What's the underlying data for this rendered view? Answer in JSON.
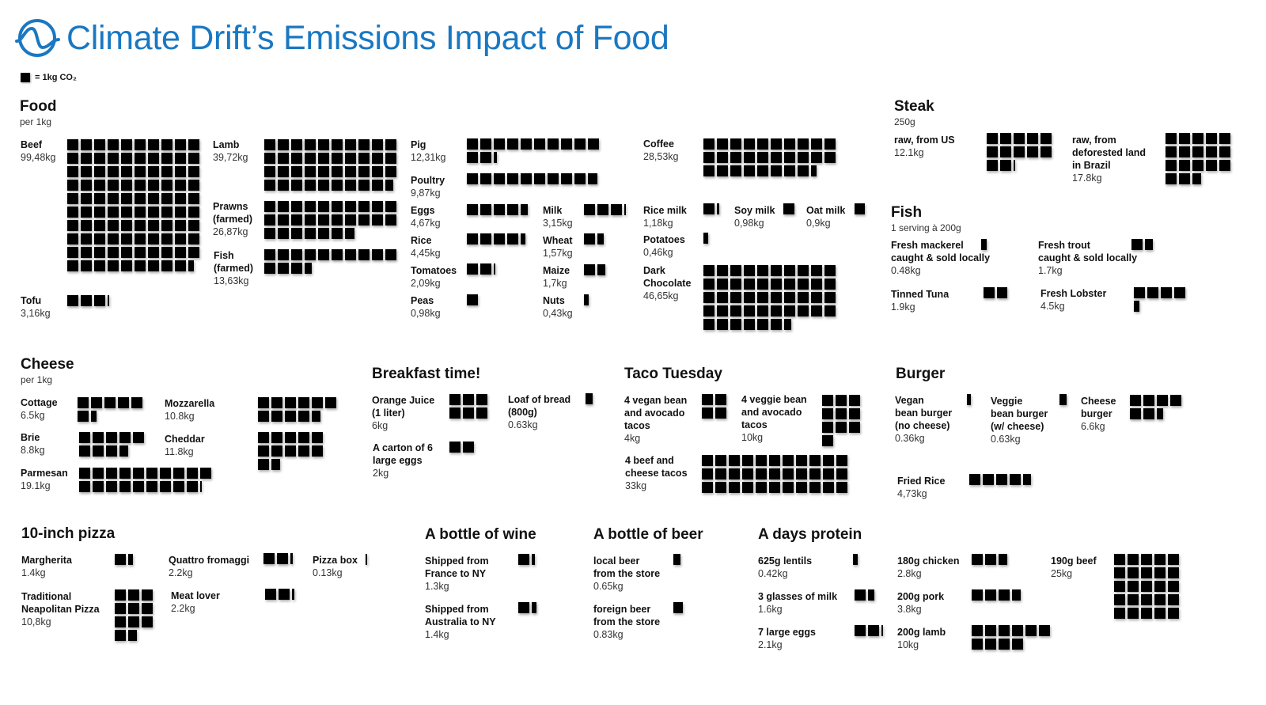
{
  "header": {
    "title": "Climate Drift’s Emissions Impact of Food",
    "logo_icon": "climate-drift-wave-logo",
    "brand_color": "#1a78c2"
  },
  "legend": {
    "unit_label": "= 1kg CO₂"
  },
  "sections": {
    "food": {
      "title": "Food",
      "subtitle": "per 1kg"
    },
    "steak": {
      "title": "Steak",
      "subtitle": "250g"
    },
    "fish": {
      "title": "Fish",
      "subtitle": "1 serving à 200g"
    },
    "cheese": {
      "title": "Cheese",
      "subtitle": "per 1kg"
    },
    "breakfast": {
      "title": "Breakfast time!"
    },
    "taco": {
      "title": "Taco Tuesday"
    },
    "burger": {
      "title": "Burger"
    },
    "pizza": {
      "title": "10-inch pizza"
    },
    "wine": {
      "title": "A bottle of wine"
    },
    "beer": {
      "title": "A bottle of beer"
    },
    "protein": {
      "title": "A days protein"
    }
  },
  "chart_data": {
    "type": "pictogram",
    "unit": "1 square = 1kg CO₂",
    "items": [
      {
        "group": "food",
        "label": "Beef",
        "value_text": "99,48kg",
        "value": 99.48
      },
      {
        "group": "food",
        "label": "Lamb",
        "value_text": "39,72kg",
        "value": 39.72
      },
      {
        "group": "food",
        "label": "Prawns\n(farmed)",
        "value_text": "26,87kg",
        "value": 26.87
      },
      {
        "group": "food",
        "label": "Fish\n(farmed)",
        "value_text": "13,63kg",
        "value": 13.63
      },
      {
        "group": "food",
        "label": "Tofu",
        "value_text": "3,16kg",
        "value": 3.16
      },
      {
        "group": "food",
        "label": "Pig",
        "value_text": "12,31kg",
        "value": 12.31
      },
      {
        "group": "food",
        "label": "Poultry",
        "value_text": "9,87kg",
        "value": 9.87
      },
      {
        "group": "food",
        "label": "Eggs",
        "value_text": "4,67kg",
        "value": 4.67
      },
      {
        "group": "food",
        "label": "Rice",
        "value_text": "4,45kg",
        "value": 4.45
      },
      {
        "group": "food",
        "label": "Tomatoes",
        "value_text": "2,09kg",
        "value": 2.09
      },
      {
        "group": "food",
        "label": "Peas",
        "value_text": "0,98kg",
        "value": 0.98
      },
      {
        "group": "food",
        "label": "Milk",
        "value_text": "3,15kg",
        "value": 3.15
      },
      {
        "group": "food",
        "label": "Wheat",
        "value_text": "1,57kg",
        "value": 1.57
      },
      {
        "group": "food",
        "label": "Maize",
        "value_text": "1,7kg",
        "value": 1.7
      },
      {
        "group": "food",
        "label": "Nuts",
        "value_text": "0,43kg",
        "value": 0.43
      },
      {
        "group": "food",
        "label": "Coffee",
        "value_text": "28,53kg",
        "value": 28.53
      },
      {
        "group": "food",
        "label": "Rice milk",
        "value_text": "1,18kg",
        "value": 1.18
      },
      {
        "group": "food",
        "label": "Soy milk",
        "value_text": "0,98kg",
        "value": 0.98
      },
      {
        "group": "food",
        "label": "Oat milk",
        "value_text": "0,9kg",
        "value": 0.9
      },
      {
        "group": "food",
        "label": "Potatoes",
        "value_text": "0,46kg",
        "value": 0.46
      },
      {
        "group": "food",
        "label": "Dark\nChocolate",
        "value_text": "46,65kg",
        "value": 46.65
      },
      {
        "group": "steak",
        "label": "raw, from US",
        "value_text": "12.1kg",
        "value": 12.1
      },
      {
        "group": "steak",
        "label": "raw, from\ndeforested land\nin Brazil",
        "value_text": "17.8kg",
        "value": 17.8
      },
      {
        "group": "fish",
        "label": "Fresh mackerel\ncaught & sold locally",
        "value_text": "0.48kg",
        "value": 0.48
      },
      {
        "group": "fish",
        "label": "Fresh trout\ncaught & sold locally",
        "value_text": "1.7kg",
        "value": 1.7
      },
      {
        "group": "fish",
        "label": "Tinned Tuna",
        "value_text": "1.9kg",
        "value": 1.9
      },
      {
        "group": "fish",
        "label": "Fresh Lobster",
        "value_text": "4.5kg",
        "value": 4.5
      },
      {
        "group": "cheese",
        "label": "Cottage",
        "value_text": "6.5kg",
        "value": 6.5
      },
      {
        "group": "cheese",
        "label": "Brie",
        "value_text": "8.8kg",
        "value": 8.8
      },
      {
        "group": "cheese",
        "label": "Parmesan",
        "value_text": "19.1kg",
        "value": 19.1
      },
      {
        "group": "cheese",
        "label": "Mozzarella",
        "value_text": "10.8kg",
        "value": 10.8
      },
      {
        "group": "cheese",
        "label": "Cheddar",
        "value_text": "11.8kg",
        "value": 11.8
      },
      {
        "group": "breakfast",
        "label": "Orange Juice\n(1 liter)",
        "value_text": "6kg",
        "value": 6
      },
      {
        "group": "breakfast",
        "label": "A carton of 6\nlarge eggs",
        "value_text": "2kg",
        "value": 2
      },
      {
        "group": "breakfast",
        "label": "Loaf of bread\n(800g)",
        "value_text": "0.63kg",
        "value": 0.63
      },
      {
        "group": "taco",
        "label": "4 vegan bean\nand avocado\ntacos",
        "value_text": "4kg",
        "value": 4
      },
      {
        "group": "taco",
        "label": "4 veggie bean\nand avocado\ntacos",
        "value_text": "10kg",
        "value": 10
      },
      {
        "group": "taco",
        "label": "4 beef and\ncheese tacos",
        "value_text": "33kg",
        "value": 33
      },
      {
        "group": "burger",
        "label": "Vegan\nbean burger\n(no cheese)",
        "value_text": "0.36kg",
        "value": 0.36
      },
      {
        "group": "burger",
        "label": "Veggie\nbean burger\n(w/ cheese)",
        "value_text": "0.63kg",
        "value": 0.63
      },
      {
        "group": "burger",
        "label": "Cheese\nburger",
        "value_text": "6.6kg",
        "value": 6.6
      },
      {
        "group": "burger",
        "label": "Fried Rice",
        "value_text": "4,73kg",
        "value": 4.73
      },
      {
        "group": "pizza",
        "label": "Margherita",
        "value_text": "1.4kg",
        "value": 1.4
      },
      {
        "group": "pizza",
        "label": "Traditional\nNeapolitan Pizza",
        "value_text": "10,8kg",
        "value": 10.8
      },
      {
        "group": "pizza",
        "label": "Quattro fromaggi",
        "value_text": "2.2kg",
        "value": 2.2
      },
      {
        "group": "pizza",
        "label": "Meat lover",
        "value_text": "2.2kg",
        "value": 2.2
      },
      {
        "group": "pizza",
        "label": "Pizza box",
        "value_text": "0.13kg",
        "value": 0.13
      },
      {
        "group": "wine",
        "label": "Shipped from\nFrance to NY",
        "value_text": "1.3kg",
        "value": 1.3
      },
      {
        "group": "wine",
        "label": "Shipped from\nAustralia to NY",
        "value_text": "1.4kg",
        "value": 1.4
      },
      {
        "group": "beer",
        "label": "local beer\nfrom the store",
        "value_text": "0.65kg",
        "value": 0.65
      },
      {
        "group": "beer",
        "label": "foreign beer\nfrom the store",
        "value_text": "0.83kg",
        "value": 0.83
      },
      {
        "group": "protein",
        "label": "625g lentils",
        "value_text": "0.42kg",
        "value": 0.42
      },
      {
        "group": "protein",
        "label": "3 glasses of milk",
        "value_text": "1.6kg",
        "value": 1.6
      },
      {
        "group": "protein",
        "label": "7 large eggs",
        "value_text": "2.1kg",
        "value": 2.1
      },
      {
        "group": "protein",
        "label": "180g chicken",
        "value_text": "2.8kg",
        "value": 2.8
      },
      {
        "group": "protein",
        "label": "200g pork",
        "value_text": "3.8kg",
        "value": 3.8
      },
      {
        "group": "protein",
        "label": "200g lamb",
        "value_text": "10kg",
        "value": 10
      },
      {
        "group": "protein",
        "label": "190g beef",
        "value_text": "25kg",
        "value": 25
      }
    ]
  }
}
